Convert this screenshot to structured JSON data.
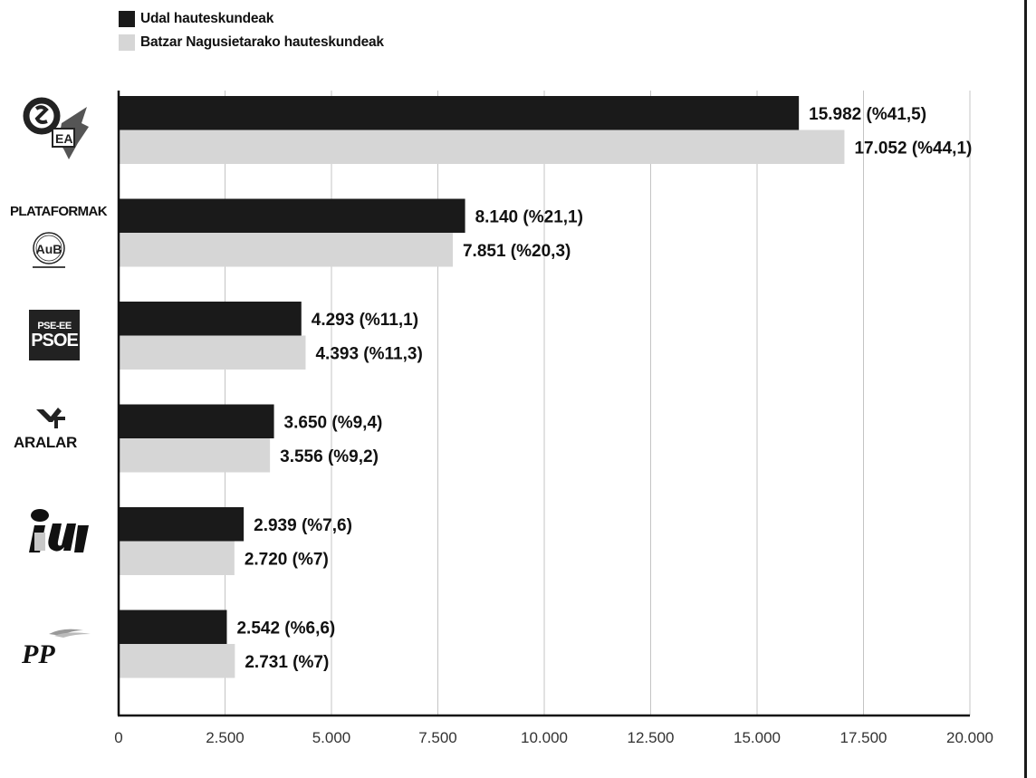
{
  "legend": {
    "items": [
      {
        "label": "Udal hauteskundeak",
        "color": "#1a1a1a"
      },
      {
        "label": "Batzar Nagusietarako hauteskundeak",
        "color": "#d6d6d6"
      }
    ]
  },
  "logos": {
    "plataformak": "PLATAFORMAK",
    "pse_top": "PSE-EE",
    "pse_bottom": "PSOE",
    "aralar": "ARALAR"
  },
  "chart_data": {
    "type": "bar",
    "orientation": "horizontal",
    "categories": [
      "EAJ-PNV / EA",
      "PLATAFORMAK / AuB",
      "PSE-EE PSOE",
      "ARALAR",
      "IU",
      "PP"
    ],
    "series": [
      {
        "name": "Udal hauteskundeak",
        "color": "#1a1a1a",
        "values": [
          15982,
          8140,
          4293,
          3650,
          2939,
          2542
        ],
        "labels": [
          "15.982 (%41,5)",
          "8.140 (%21,1)",
          "4.293 (%11,1)",
          "3.650 (%9,4)",
          "2.939 (%7,6)",
          "2.542 (%6,6)"
        ]
      },
      {
        "name": "Batzar Nagusietarako hauteskundeak",
        "color": "#d6d6d6",
        "values": [
          17052,
          7851,
          4393,
          3556,
          2720,
          2731
        ],
        "labels": [
          "17.052 (%44,1)",
          "7.851 (%20,3)",
          "4.393 (%11,3)",
          "3.556 (%9,2)",
          "2.720 (%7)",
          "2.731 (%7)"
        ]
      }
    ],
    "xlim": [
      0,
      20000
    ],
    "ticks": [
      0,
      2500,
      5000,
      7500,
      10000,
      12500,
      15000,
      17500,
      20000
    ],
    "tick_labels": [
      "0",
      "2.500",
      "5.000",
      "7.500",
      "10.000",
      "12.500",
      "15.000",
      "17.500",
      "20.000"
    ],
    "grid": true,
    "legend_position": "top-left"
  }
}
